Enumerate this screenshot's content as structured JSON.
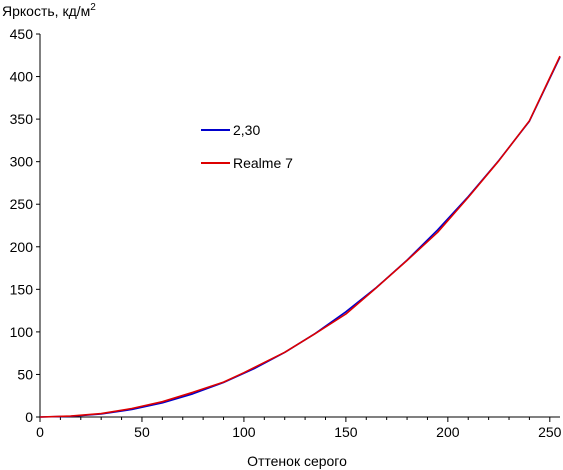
{
  "chart_data": {
    "type": "line",
    "ylabel": "Яркость, кд/м",
    "ylabel_sup": "2",
    "xlabel": "Оттенок серого",
    "xlim": [
      0,
      255
    ],
    "ylim": [
      0,
      450
    ],
    "xticks": [
      0,
      50,
      100,
      150,
      200,
      250
    ],
    "yticks": [
      0,
      50,
      100,
      150,
      200,
      250,
      300,
      350,
      400,
      450
    ],
    "grid": false,
    "legend_position": "upper-left-center",
    "series": [
      {
        "name": "2,30",
        "color": "#0000cc",
        "x": [
          0,
          15,
          30,
          45,
          60,
          75,
          90,
          105,
          120,
          135,
          150,
          165,
          180,
          195,
          210,
          225,
          240,
          255
        ],
        "y": [
          0,
          0.8,
          3.5,
          8.8,
          16.6,
          27.2,
          40.5,
          56.7,
          75.9,
          98.2,
          123.6,
          152.3,
          184.4,
          219.8,
          258.8,
          301.4,
          347.6,
          423.0
        ]
      },
      {
        "name": "Realme 7",
        "color": "#dd0000",
        "x": [
          0,
          15,
          30,
          45,
          60,
          75,
          90,
          100,
          120,
          135,
          150,
          165,
          180,
          195,
          210,
          225,
          240,
          255
        ],
        "y": [
          0,
          1.0,
          4.0,
          10.0,
          18.0,
          29.0,
          41.0,
          52.0,
          76.0,
          98.0,
          121.0,
          152.0,
          184.0,
          217.0,
          258.0,
          301.0,
          348.0,
          424.0
        ]
      }
    ]
  }
}
